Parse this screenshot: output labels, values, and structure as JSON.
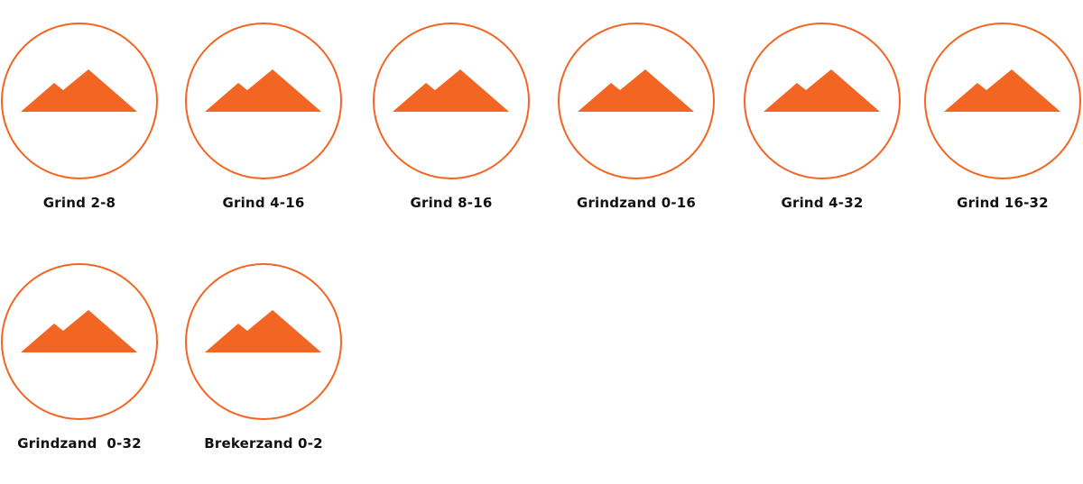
{
  "colors": {
    "accent": "#F26522",
    "text": "#111111"
  },
  "icon": "mountain-icon",
  "products": [
    {
      "label": "Grind 2-8"
    },
    {
      "label": "Grind 4-16"
    },
    {
      "label": "Grind 8-16"
    },
    {
      "label": "Grindzand 0-16"
    },
    {
      "label": "Grind 4-32"
    },
    {
      "label": "Grind 16-32"
    },
    {
      "label": "Grindzand  0-32"
    },
    {
      "label": "Brekerzand 0-2"
    }
  ]
}
